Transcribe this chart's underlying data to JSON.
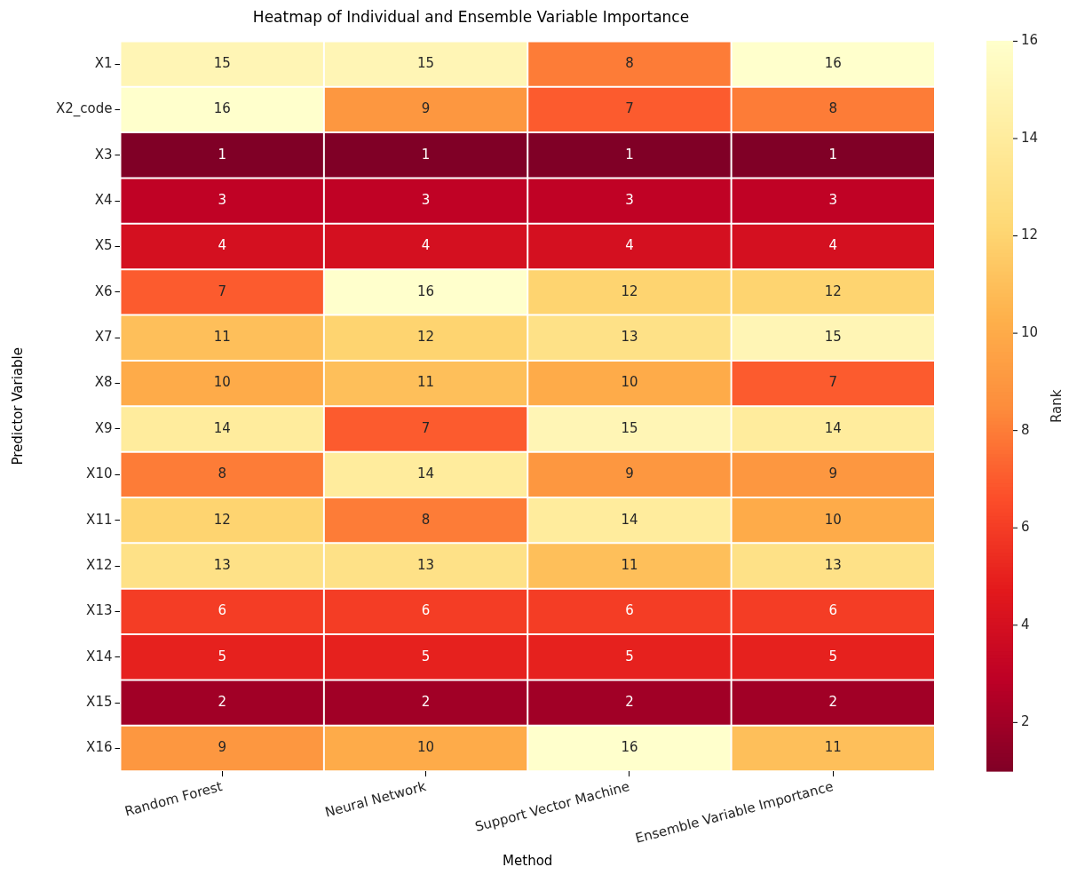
{
  "chart_data": {
    "type": "heatmap",
    "title": "Heatmap of Individual and Ensemble Variable Importance",
    "xlabel": "Method",
    "ylabel": "Predictor Variable",
    "clabel": "Rank",
    "categories": [
      "Random Forest",
      "Neural Network",
      "Support Vector Machine",
      "Ensemble Variable Importance"
    ],
    "y_categories": [
      "X1",
      "X2_code",
      "X3",
      "X4",
      "X5",
      "X6",
      "X7",
      "X8",
      "X9",
      "X10",
      "X11",
      "X12",
      "X13",
      "X14",
      "X15",
      "X16"
    ],
    "cells": [
      [
        15,
        15,
        8,
        16
      ],
      [
        16,
        9,
        7,
        8
      ],
      [
        1,
        1,
        1,
        1
      ],
      [
        3,
        3,
        3,
        3
      ],
      [
        4,
        4,
        4,
        4
      ],
      [
        7,
        16,
        12,
        12
      ],
      [
        11,
        12,
        13,
        15
      ],
      [
        10,
        11,
        10,
        7
      ],
      [
        14,
        7,
        15,
        14
      ],
      [
        8,
        14,
        9,
        9
      ],
      [
        12,
        8,
        14,
        10
      ],
      [
        13,
        13,
        11,
        13
      ],
      [
        6,
        6,
        6,
        6
      ],
      [
        5,
        5,
        5,
        5
      ],
      [
        2,
        2,
        2,
        2
      ],
      [
        9,
        10,
        16,
        11
      ]
    ],
    "clim": [
      1,
      16
    ],
    "cticks": [
      2,
      4,
      6,
      8,
      10,
      12,
      14,
      16
    ],
    "data_labels": true
  }
}
